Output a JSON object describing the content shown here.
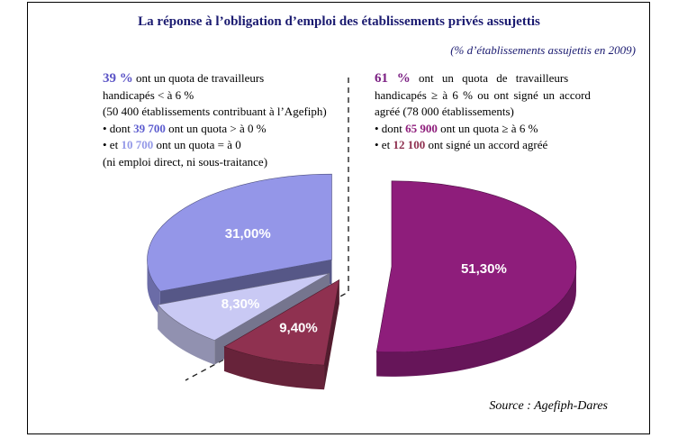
{
  "title": "La réponse à l’obligation d’emploi des établissements privés assujettis",
  "subtitle": "(% d’établissements assujettis en 2009)",
  "source": "Source : Agefiph-Dares",
  "left_block": {
    "pct": "39 %",
    "line1_rest": " ont un quota de travailleurs",
    "line2": "handicapés < à 6 %",
    "line3": "(50 400 établissements contribuant à l’Agefiph)",
    "bullet1_pre": "• dont ",
    "bullet1_num": "39 700",
    "bullet1_post": " ont un quota > à 0 %",
    "bullet2_pre": "• et ",
    "bullet2_num": "10 700",
    "bullet2_post": " ont un quota = à 0",
    "line6": "(ni emploi direct, ni sous-traitance)"
  },
  "right_block": {
    "pct": "61 %",
    "line1_rest": " ont un quota de travailleurs",
    "line2": "handicapés ≥ à 6 % ou ont signé un accord",
    "line3": "agréé (78 000 établissements)",
    "bullet1_pre": "• dont ",
    "bullet1_num": "65 900",
    "bullet1_post": " ont un quota ≥ à 6 %",
    "bullet2_pre": "• et ",
    "bullet2_num": "12 100",
    "bullet2_post": " ont signé un accord agréé"
  },
  "palette": {
    "title_navy": "#1a1a70",
    "left_pct": "#5b54c6",
    "left_num1": "#5d5dcf",
    "left_num2": "#959ae8",
    "right_pct": "#7b2083",
    "right_num1": "#8e1d7b",
    "right_num2": "#8f3150"
  },
  "chart_data": {
    "type": "pie",
    "title": "La réponse à l’obligation d’emploi des établissements privés assujettis",
    "unit": "% d’établissements assujettis en 2009",
    "start_angle_deg": 270,
    "clockwise": true,
    "exploded": true,
    "labels_color": "#ffffff",
    "slices": [
      {
        "label": "51,30%",
        "value": 51.3,
        "color": "#8e1d7b"
      },
      {
        "label": "9,40%",
        "value": 9.4,
        "color": "#8f3150"
      },
      {
        "label": "8,30%",
        "value": 8.3,
        "color": "#c9c9f4"
      },
      {
        "label": "31,00%",
        "value": 31.0,
        "color": "#9496e8"
      }
    ]
  }
}
